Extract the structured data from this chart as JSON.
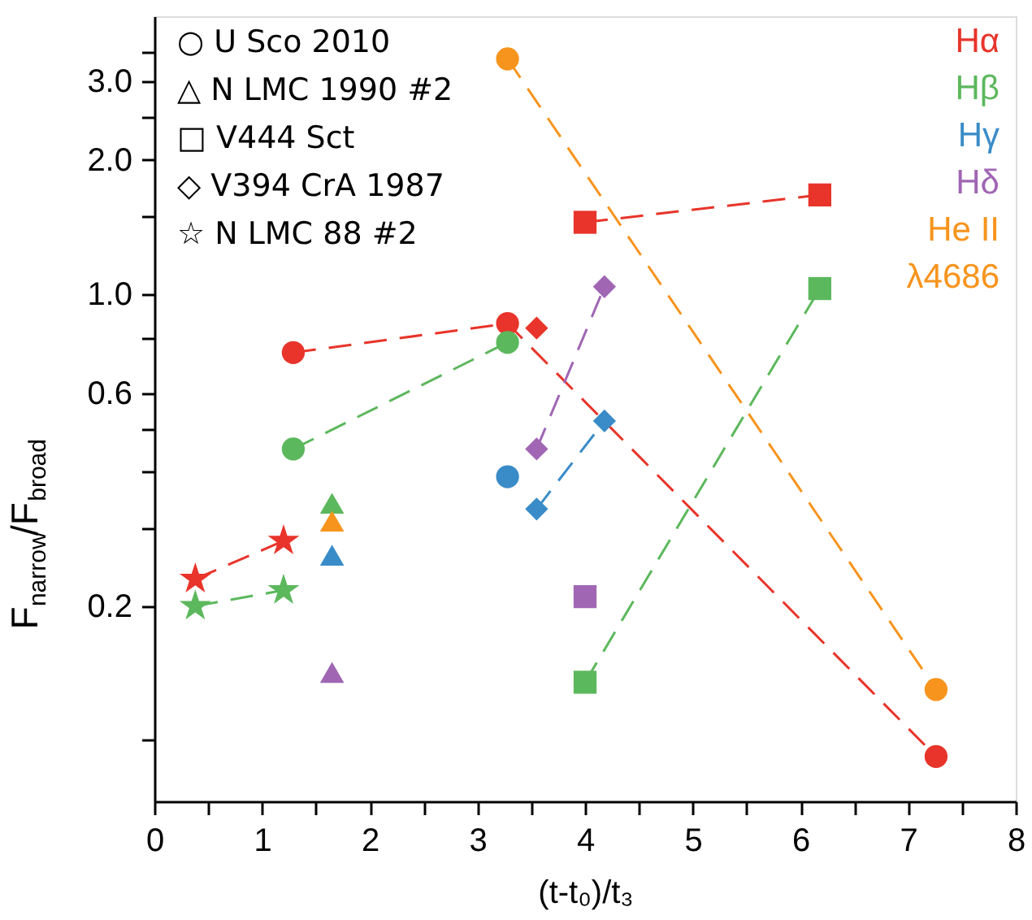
{
  "chart_data": {
    "type": "scatter",
    "xlabel": "(t-t₀)/t₃",
    "ylabel": "F$_{narrow}$/F$_{broad}$",
    "log": "y",
    "grid": false,
    "line_style": "dashed",
    "xlim": [
      0,
      8
    ],
    "ylim": [
      0.073,
      4.2
    ],
    "xticks": [
      0,
      {
        "value": 0.5,
        "label": null
      },
      1,
      {
        "value": 1.5,
        "label": null
      },
      2,
      {
        "value": 2.5,
        "label": null
      },
      3,
      {
        "value": 3.5,
        "label": null
      },
      4,
      {
        "value": 4.5,
        "label": null
      },
      5,
      {
        "value": 5.5,
        "label": null
      },
      6,
      {
        "value": 6.5,
        "label": null
      },
      7,
      {
        "value": 7.5,
        "label": null
      },
      8
    ],
    "yticks": [
      {
        "value": 0.1,
        "label": null
      },
      0.2,
      {
        "value": 0.3,
        "label": null
      },
      {
        "value": 0.4,
        "label": null
      },
      {
        "value": 0.5,
        "label": null
      },
      0.6,
      {
        "value": 0.8,
        "label": null
      },
      {
        "value": 1,
        "label": "1.0"
      },
      {
        "value": 1.5,
        "label": null
      },
      {
        "value": 2,
        "label": "2.0"
      },
      {
        "value": 2.5,
        "label": null
      },
      {
        "value": 3,
        "label": "3.0"
      },
      {
        "value": 3.5,
        "label": null
      }
    ],
    "annotations": [
      "○ U Sco 2010",
      "△ N LMC 1990 #2",
      "□ V444 Sct",
      "◇ V394 CrA 1987",
      "☆ N LMC 88 #2",
      "Hα",
      "Hβ",
      "Hγ",
      "Hδ",
      "He II\nλ4686"
    ],
    "series": [
      {
        "marker": "circle",
        "type": "line",
        "color": "#e8342a",
        "x": [
          1.29,
          3.28,
          7.26
        ],
        "values": [
          0.74,
          0.86,
          0.092
        ]
      },
      {
        "marker": "circle",
        "type": "line",
        "color": "#5cb85c",
        "x": [
          1.29,
          3.28
        ],
        "values": [
          0.45,
          0.78
        ]
      },
      {
        "marker": "circle",
        "color": "#3a8cc8",
        "x": [
          3.28
        ],
        "values": [
          0.39
        ]
      },
      {
        "marker": "triangle",
        "color": "#a066b4",
        "x": [
          1.65
        ],
        "values": [
          0.142
        ]
      },
      {
        "marker": "circle",
        "type": "line",
        "color": "#f7941d",
        "x": [
          3.28,
          7.26
        ],
        "values": [
          3.37,
          0.13
        ]
      },
      {
        "marker": "triangle",
        "color": "#5cb85c",
        "x": [
          1.65
        ],
        "values": [
          0.34
        ]
      },
      {
        "marker": "triangle",
        "color": "#f7941d",
        "x": [
          1.65
        ],
        "values": [
          0.31
        ]
      },
      {
        "marker": "triangle",
        "color": "#3a8cc8",
        "x": [
          1.65
        ],
        "values": [
          0.26
        ]
      },
      {
        "marker": "square",
        "type": "line",
        "color": "#e8342a",
        "x": [
          4.0,
          6.18
        ],
        "values": [
          1.45,
          1.67
        ]
      },
      {
        "marker": "square",
        "type": "line",
        "color": "#5cb85c",
        "x": [
          4.0,
          6.18
        ],
        "values": [
          0.135,
          1.03
        ]
      },
      {
        "marker": "square",
        "color": "#a066b4",
        "x": [
          4.0
        ],
        "values": [
          0.21
        ]
      },
      {
        "marker": "diamond",
        "color": "#e8342a",
        "x": [
          3.55
        ],
        "values": [
          0.84
        ]
      },
      {
        "marker": "diamond",
        "type": "line",
        "color": "#a066b4",
        "x": [
          3.55,
          4.18
        ],
        "values": [
          0.45,
          1.04
        ]
      },
      {
        "marker": "diamond",
        "type": "line",
        "color": "#3a8cc8",
        "x": [
          3.55,
          4.18
        ],
        "values": [
          0.33,
          0.52
        ]
      },
      {
        "marker": "star",
        "type": "line",
        "color": "#e8342a",
        "x": [
          0.38,
          1.2
        ],
        "values": [
          0.23,
          0.28
        ]
      },
      {
        "marker": "star",
        "type": "line",
        "color": "#5cb85c",
        "x": [
          0.38,
          1.2
        ],
        "values": [
          0.2,
          0.217
        ]
      }
    ]
  }
}
